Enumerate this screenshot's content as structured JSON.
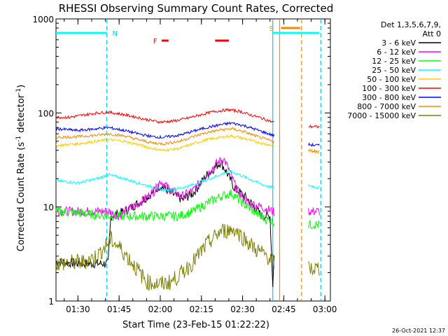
{
  "chart_data": {
    "type": "line",
    "title": "RHESSI Observing Summary Count Rates, Corrected",
    "xlabel": "Start Time (23-Feb-15 01:22:22)",
    "ylabel_main": "Corrected Count Rate (s",
    "ylabel_sup1": "-1",
    "ylabel_mid": " detector",
    "ylabel_sup2": "-1",
    "ylabel_end": ")",
    "yscale": "log",
    "ylim": [
      1,
      1000
    ],
    "xlim_minutes": [
      0,
      100
    ],
    "x_ticks": [
      {
        "m": 8,
        "label": "01:30"
      },
      {
        "m": 23,
        "label": "01:45"
      },
      {
        "m": 38,
        "label": "02:00"
      },
      {
        "m": 53,
        "label": "02:15"
      },
      {
        "m": 68,
        "label": "02:30"
      },
      {
        "m": 83,
        "label": "02:45"
      },
      {
        "m": 98,
        "label": "03:00"
      }
    ],
    "y_ticks": [
      {
        "v": 1,
        "label": "1"
      },
      {
        "v": 10,
        "label": "10"
      },
      {
        "v": 100,
        "label": "100"
      },
      {
        "v": 1000,
        "label": "1000"
      }
    ],
    "legend": {
      "header1": "Det 1,3,5,6,7,9,",
      "header2": "Att 0",
      "placement": "right-outside"
    },
    "series": [
      {
        "name": "3 - 6 keV",
        "color": "#000000",
        "points": [
          [
            0,
            2.6
          ],
          [
            10,
            2.5
          ],
          [
            19,
            2.5
          ],
          [
            20,
            8
          ],
          [
            25,
            9
          ],
          [
            30,
            11
          ],
          [
            35,
            14
          ],
          [
            38,
            17
          ],
          [
            42,
            14
          ],
          [
            46,
            12
          ],
          [
            50,
            14
          ],
          [
            55,
            22
          ],
          [
            60,
            30
          ],
          [
            62,
            24
          ],
          [
            65,
            16
          ],
          [
            70,
            12
          ],
          [
            75,
            8
          ],
          [
            78,
            8
          ],
          [
            79,
            1.5
          ],
          [
            79.5,
            3
          ]
        ]
      },
      {
        "name": "6 - 12 keV",
        "color": "#ff00ff",
        "points": [
          [
            0,
            9
          ],
          [
            10,
            9
          ],
          [
            19,
            9
          ],
          [
            23,
            8
          ],
          [
            28,
            10
          ],
          [
            32,
            12
          ],
          [
            36,
            15
          ],
          [
            38,
            19
          ],
          [
            42,
            15
          ],
          [
            46,
            13
          ],
          [
            50,
            15
          ],
          [
            55,
            22
          ],
          [
            58,
            28
          ],
          [
            61,
            33
          ],
          [
            63,
            25
          ],
          [
            66,
            15
          ],
          [
            70,
            11
          ],
          [
            75,
            10
          ],
          [
            79,
            9
          ],
          [
            80,
            8.5
          ],
          [
            92,
            9
          ],
          [
            96,
            9
          ]
        ]
      },
      {
        "name": "12 - 25 keV",
        "color": "#00ff00",
        "points": [
          [
            0,
            9
          ],
          [
            10,
            8.5
          ],
          [
            20,
            8
          ],
          [
            30,
            8
          ],
          [
            40,
            8
          ],
          [
            45,
            8
          ],
          [
            50,
            9
          ],
          [
            55,
            11
          ],
          [
            60,
            13
          ],
          [
            64,
            14
          ],
          [
            68,
            11
          ],
          [
            72,
            9
          ],
          [
            76,
            7.5
          ],
          [
            79,
            7
          ],
          [
            92,
            6.5
          ],
          [
            96,
            6.5
          ]
        ]
      },
      {
        "name": "25 - 50 keV",
        "color": "#00ffff",
        "points": [
          [
            0,
            19
          ],
          [
            8,
            18
          ],
          [
            15,
            20
          ],
          [
            19,
            22
          ],
          [
            25,
            20
          ],
          [
            30,
            18
          ],
          [
            36,
            16
          ],
          [
            40,
            15
          ],
          [
            46,
            16
          ],
          [
            52,
            18
          ],
          [
            58,
            21
          ],
          [
            63,
            24
          ],
          [
            67,
            22
          ],
          [
            72,
            19
          ],
          [
            76,
            17
          ],
          [
            79,
            16
          ],
          [
            92,
            17
          ],
          [
            96,
            16
          ]
        ]
      },
      {
        "name": "50 - 100 keV",
        "color": "#ffcc00",
        "points": [
          [
            0,
            45
          ],
          [
            8,
            47
          ],
          [
            15,
            50
          ],
          [
            19,
            52
          ],
          [
            25,
            50
          ],
          [
            30,
            46
          ],
          [
            35,
            42
          ],
          [
            39,
            40
          ],
          [
            45,
            42
          ],
          [
            50,
            47
          ],
          [
            55,
            52
          ],
          [
            60,
            55
          ],
          [
            64,
            57
          ],
          [
            68,
            54
          ],
          [
            72,
            50
          ],
          [
            76,
            47
          ],
          [
            79,
            45
          ],
          [
            92,
            39
          ],
          [
            96,
            38
          ]
        ]
      },
      {
        "name": "100 - 300 keV",
        "color": "#ff0000",
        "points": [
          [
            0,
            90
          ],
          [
            5,
            90
          ],
          [
            10,
            95
          ],
          [
            15,
            100
          ],
          [
            19,
            102
          ],
          [
            23,
            98
          ],
          [
            28,
            92
          ],
          [
            33,
            85
          ],
          [
            38,
            80
          ],
          [
            43,
            82
          ],
          [
            48,
            88
          ],
          [
            53,
            96
          ],
          [
            58,
            104
          ],
          [
            63,
            108
          ],
          [
            67,
            104
          ],
          [
            71,
            95
          ],
          [
            75,
            88
          ],
          [
            79,
            80
          ],
          [
            92,
            72
          ],
          [
            96,
            71
          ]
        ]
      },
      {
        "name": "300 - 800 keV",
        "color": "#0000ff",
        "points": [
          [
            0,
            68
          ],
          [
            8,
            65
          ],
          [
            15,
            68
          ],
          [
            19,
            70
          ],
          [
            25,
            65
          ],
          [
            30,
            60
          ],
          [
            35,
            56
          ],
          [
            39,
            55
          ],
          [
            45,
            58
          ],
          [
            50,
            64
          ],
          [
            55,
            70
          ],
          [
            60,
            75
          ],
          [
            64,
            78
          ],
          [
            68,
            74
          ],
          [
            72,
            68
          ],
          [
            76,
            62
          ],
          [
            79,
            58
          ],
          [
            92,
            46
          ],
          [
            96,
            45
          ]
        ]
      },
      {
        "name": "800 - 7000 keV",
        "color": "#ff8800",
        "points": [
          [
            0,
            55
          ],
          [
            8,
            56
          ],
          [
            15,
            58
          ],
          [
            19,
            60
          ],
          [
            25,
            57
          ],
          [
            30,
            52
          ],
          [
            35,
            48
          ],
          [
            39,
            47
          ],
          [
            45,
            50
          ],
          [
            50,
            56
          ],
          [
            55,
            62
          ],
          [
            60,
            66
          ],
          [
            64,
            68
          ],
          [
            68,
            64
          ],
          [
            72,
            58
          ],
          [
            76,
            53
          ],
          [
            79,
            50
          ],
          [
            92,
            40
          ],
          [
            96,
            39
          ]
        ]
      },
      {
        "name": "7000 - 15000 keV",
        "color": "#808000",
        "points": [
          [
            0,
            2.5
          ],
          [
            10,
            2.6
          ],
          [
            15,
            3
          ],
          [
            20,
            4.5
          ],
          [
            24,
            3.5
          ],
          [
            28,
            2.5
          ],
          [
            33,
            1.6
          ],
          [
            38,
            1.5
          ],
          [
            42,
            1.6
          ],
          [
            46,
            2
          ],
          [
            50,
            2.6
          ],
          [
            55,
            4
          ],
          [
            60,
            5.5
          ],
          [
            65,
            5.8
          ],
          [
            69,
            4.5
          ],
          [
            73,
            3.5
          ],
          [
            77,
            3
          ],
          [
            79,
            2.6
          ],
          [
            92,
            2.2
          ],
          [
            96,
            2.2
          ]
        ]
      }
    ],
    "flags": {
      "saa_label": "N",
      "saa_segments": [
        [
          0,
          18.5
        ]
      ],
      "flare_label": "F",
      "flare_segments": [
        [
          38.5,
          41
        ],
        [
          58,
          63
        ]
      ],
      "s_label": "S",
      "s_segments": [
        [
          79,
          96
        ]
      ],
      "attenuator_segments": [
        [
          82,
          89
        ]
      ]
    },
    "vlines": [
      {
        "m": 18.5,
        "color": "#00ccff",
        "dash": true
      },
      {
        "m": 79,
        "color": "#00ccff",
        "dash": false
      },
      {
        "m": 81.5,
        "color": "#ff8800",
        "dash": false
      },
      {
        "m": 89.5,
        "color": "#ff8800",
        "dash": true
      },
      {
        "m": 96.5,
        "color": "#00ccff",
        "dash": true
      }
    ],
    "footer": "26-Oct-2021 12:37"
  }
}
